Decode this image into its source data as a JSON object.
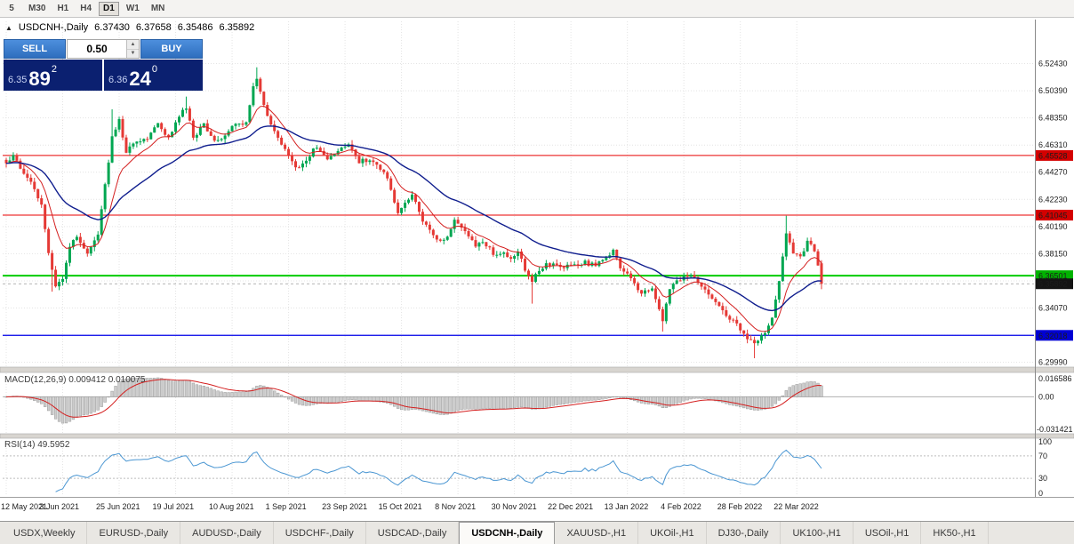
{
  "toolbar": {
    "timeframes": [
      "5",
      "M30",
      "H1",
      "H4",
      "D1",
      "W1",
      "MN"
    ],
    "active": "D1"
  },
  "chart_header": {
    "collapse_icon": "▲",
    "symbol_period": "USDCNH-,Daily",
    "open": "6.37430",
    "high": "6.37658",
    "low": "6.35486",
    "close": "6.35892"
  },
  "trade_panel": {
    "sell_label": "SELL",
    "buy_label": "BUY",
    "volume": "0.50",
    "up_arrow": "▲",
    "down_arrow": "▼",
    "sell_price": {
      "base": "6.35",
      "pips": "89",
      "fraction": "2"
    },
    "buy_price": {
      "base": "6.36",
      "pips": "24",
      "fraction": "0"
    }
  },
  "indicators": {
    "macd": {
      "text": "MACD(12,26,9) 0.009412 0.010075",
      "axis_top": "0.016586",
      "axis_zero": "0.00",
      "axis_bottom": "-0.031421"
    },
    "rsi": {
      "text": "RSI(14) 49.5952",
      "axis": [
        "100",
        "70",
        "30",
        "0"
      ]
    }
  },
  "price_axis": {
    "labels": [
      "6.52430",
      "6.50390",
      "6.48350",
      "6.46310",
      "6.44270",
      "6.42230",
      "6.40190",
      "6.38150",
      "6.36110",
      "6.34070",
      "6.32030",
      "6.29990"
    ],
    "badges": [
      {
        "value": "6.45528",
        "price": 6.45528,
        "bg": "#d40000"
      },
      {
        "value": "6.41045",
        "price": 6.41045,
        "bg": "#d40000"
      },
      {
        "value": "6.36501",
        "price": 6.36501,
        "bg": "#00b300"
      },
      {
        "value": "6.35892",
        "price": 6.35892,
        "bg": "#141414"
      },
      {
        "value": "6.32018",
        "price": 6.32018,
        "bg": "#0000d4"
      }
    ]
  },
  "time_axis": [
    "12 May 2021",
    "3 Jun 2021",
    "25 Jun 2021",
    "19 Jul 2021",
    "10 Aug 2021",
    "1 Sep 2021",
    "23 Sep 2021",
    "15 Oct 2021",
    "8 Nov 2021",
    "30 Nov 2021",
    "22 Dec 2021",
    "13 Jan 2022",
    "4 Feb 2022",
    "28 Feb 2022",
    "22 Mar 2022"
  ],
  "tabs": {
    "active": "USDCNH-,Daily",
    "items": [
      "USDX,Weekly",
      "EURUSD-,Daily",
      "AUDUSD-,Daily",
      "USDCHF-,Daily",
      "USDCAD-,Daily",
      "USDCNH-,Daily",
      "XAUUSD-,H1",
      "UKOil-,H1",
      "DJ30-,Daily",
      "UK100-,H1",
      "USOil-,H1",
      "HK50-,H1"
    ]
  },
  "chart_data": {
    "type": "candlestick",
    "symbol": "USDCNH-",
    "period": "Daily",
    "candle_count": 232,
    "bars_per_label": 16,
    "price_range": {
      "top": 6.542,
      "bottom": 6.297
    },
    "last_candle": {
      "open": 6.3743,
      "high": 6.37658,
      "low": 6.35486,
      "close": 6.35892
    },
    "hlines": [
      {
        "price": 6.45528,
        "color": "#e80000",
        "width": 1
      },
      {
        "price": 6.41045,
        "color": "#e80000",
        "width": 1
      },
      {
        "price": 6.36501,
        "color": "#00cc00",
        "width": 2
      },
      {
        "price": 6.32018,
        "color": "#0000e8",
        "width": 1.2
      }
    ],
    "bid_line": {
      "price": 6.35892,
      "color": "#9a9a9a"
    },
    "close_anchors": [
      [
        0,
        6.448
      ],
      [
        2,
        6.456
      ],
      [
        4,
        6.445
      ],
      [
        6,
        6.438
      ],
      [
        8,
        6.43
      ],
      [
        10,
        6.418
      ],
      [
        12,
        6.382
      ],
      [
        14,
        6.356
      ],
      [
        16,
        6.364
      ],
      [
        18,
        6.386
      ],
      [
        20,
        6.395
      ],
      [
        23,
        6.383
      ],
      [
        26,
        6.396
      ],
      [
        28,
        6.432
      ],
      [
        30,
        6.469
      ],
      [
        32,
        6.481
      ],
      [
        34,
        6.458
      ],
      [
        37,
        6.466
      ],
      [
        40,
        6.469
      ],
      [
        43,
        6.478
      ],
      [
        46,
        6.469
      ],
      [
        49,
        6.486
      ],
      [
        51,
        6.492
      ],
      [
        53,
        6.468
      ],
      [
        56,
        6.479
      ],
      [
        59,
        6.465
      ],
      [
        62,
        6.471
      ],
      [
        65,
        6.48
      ],
      [
        68,
        6.479
      ],
      [
        70,
        6.506
      ],
      [
        71,
        6.514
      ],
      [
        73,
        6.492
      ],
      [
        76,
        6.474
      ],
      [
        79,
        6.46
      ],
      [
        82,
        6.445
      ],
      [
        85,
        6.453
      ],
      [
        88,
        6.462
      ],
      [
        91,
        6.454
      ],
      [
        94,
        6.459
      ],
      [
        97,
        6.465
      ],
      [
        100,
        6.451
      ],
      [
        103,
        6.452
      ],
      [
        105,
        6.448
      ],
      [
        107,
        6.444
      ],
      [
        109,
        6.43
      ],
      [
        111,
        6.412
      ],
      [
        113,
        6.42
      ],
      [
        115,
        6.426
      ],
      [
        117,
        6.412
      ],
      [
        119,
        6.402
      ],
      [
        121,
        6.395
      ],
      [
        123,
        6.39
      ],
      [
        125,
        6.396
      ],
      [
        127,
        6.406
      ],
      [
        129,
        6.4
      ],
      [
        131,
        6.394
      ],
      [
        133,
        6.387
      ],
      [
        135,
        6.391
      ],
      [
        137,
        6.385
      ],
      [
        139,
        6.379
      ],
      [
        141,
        6.383
      ],
      [
        143,
        6.378
      ],
      [
        145,
        6.382
      ],
      [
        147,
        6.37
      ],
      [
        149,
        6.36
      ],
      [
        151,
        6.37
      ],
      [
        154,
        6.374
      ],
      [
        158,
        6.371
      ],
      [
        161,
        6.373
      ],
      [
        164,
        6.375
      ],
      [
        167,
        6.372
      ],
      [
        170,
        6.379
      ],
      [
        172,
        6.385
      ],
      [
        174,
        6.371
      ],
      [
        177,
        6.362
      ],
      [
        180,
        6.351
      ],
      [
        183,
        6.356
      ],
      [
        186,
        6.33
      ],
      [
        188,
        6.356
      ],
      [
        191,
        6.363
      ],
      [
        194,
        6.365
      ],
      [
        197,
        6.357
      ],
      [
        200,
        6.347
      ],
      [
        203,
        6.339
      ],
      [
        206,
        6.331
      ],
      [
        209,
        6.321
      ],
      [
        212,
        6.313
      ],
      [
        215,
        6.322
      ],
      [
        217,
        6.332
      ],
      [
        219,
        6.36
      ],
      [
        221,
        6.398
      ],
      [
        223,
        6.382
      ],
      [
        225,
        6.379
      ],
      [
        227,
        6.391
      ],
      [
        229,
        6.383
      ],
      [
        230,
        6.372
      ],
      [
        231,
        6.3589
      ]
    ],
    "wick_highs": [
      [
        30,
        6.49
      ],
      [
        51,
        6.4995
      ],
      [
        71,
        6.5215
      ],
      [
        221,
        6.41
      ]
    ],
    "wick_lows": [
      [
        13,
        6.353
      ],
      [
        149,
        6.344
      ],
      [
        186,
        6.323
      ],
      [
        212,
        6.303
      ]
    ],
    "moving_averages": [
      {
        "period": 10,
        "color": "#d42020"
      },
      {
        "period": 34,
        "color": "#101e8e"
      }
    ],
    "macd": {
      "fast": 12,
      "slow": 26,
      "signal_period": 9,
      "value": 0.009412,
      "signal_value": 0.010075,
      "histogram_color": "#cdcdcd",
      "histogram_stroke": "#9a9a9a",
      "signal_color": "#d42020"
    },
    "rsi": {
      "period": 14,
      "value": 49.5952,
      "levels": [
        70,
        30
      ],
      "color": "#4a96d2"
    },
    "candle_colors": {
      "bull": "#00a651",
      "bear": "#e53935"
    },
    "grid_color": "#e4e4e4"
  }
}
